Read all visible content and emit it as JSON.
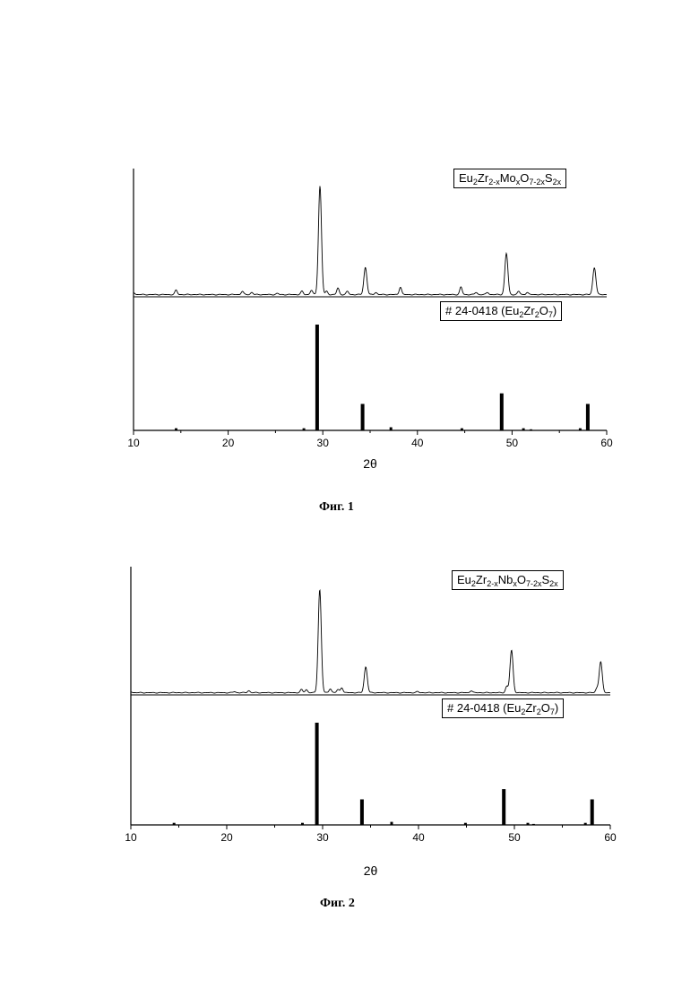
{
  "chart_data": [
    {
      "type": "line",
      "figure_caption": "Фиг. 1",
      "xlabel": "2θ",
      "xlim": [
        10,
        60
      ],
      "xticks": [
        "10",
        "20",
        "30",
        "40",
        "50",
        "60"
      ],
      "panels": [
        {
          "type": "line",
          "legend": {
            "base": "Eu",
            "parts": [
              [
                "Eu",
                ""
              ],
              [
                "2",
                "sub"
              ],
              [
                "Zr",
                ""
              ],
              [
                "2-x",
                "sub"
              ],
              [
                "Mo",
                ""
              ],
              [
                "x",
                "sub"
              ],
              [
                "O",
                ""
              ],
              [
                "7-2x",
                "sub"
              ],
              [
                "S",
                ""
              ],
              [
                "2x",
                "sub"
              ]
            ]
          },
          "series": [
            {
              "x": [
                10,
                14.5,
                21.5,
                22.5,
                25.2,
                27.8,
                28.8,
                29.7,
                30.4,
                31.6,
                32.6,
                34.5,
                35.6,
                38.2,
                44.6,
                46.2,
                47.4,
                49.4,
                50.7,
                51.6,
                58.7
              ],
              "y": [
                2,
                4,
                3,
                2,
                1,
                3,
                4,
                100,
                3,
                6,
                3,
                25,
                2,
                7,
                7,
                2,
                2,
                38,
                3,
                2,
                25
              ]
            }
          ]
        },
        {
          "type": "bar",
          "legend": {
            "parts": [
              [
                "# 24-0418 (Eu",
                ""
              ],
              [
                "2",
                "sub"
              ],
              [
                "Zr",
                ""
              ],
              [
                "2",
                "sub"
              ],
              [
                "O",
                ""
              ],
              [
                "7",
                "sub"
              ],
              [
                ")",
                ""
              ]
            ]
          },
          "series": [
            {
              "x": [
                14.5,
                28.0,
                29.4,
                34.2,
                37.2,
                44.7,
                48.9,
                51.2,
                52.0,
                57.2,
                58.0
              ],
              "y": [
                2,
                2,
                100,
                25,
                3,
                2,
                35,
                2,
                1,
                2,
                25
              ]
            }
          ]
        }
      ]
    },
    {
      "type": "line",
      "figure_caption": "Фиг. 2",
      "xlabel": "2θ",
      "xlim": [
        10,
        60
      ],
      "xticks": [
        "10",
        "20",
        "30",
        "40",
        "50",
        "60"
      ],
      "panels": [
        {
          "type": "line",
          "legend": {
            "parts": [
              [
                "Eu",
                ""
              ],
              [
                "2",
                "sub"
              ],
              [
                "Zr",
                ""
              ],
              [
                "2-x",
                "sub"
              ],
              [
                "Nb",
                ""
              ],
              [
                "x",
                "sub"
              ],
              [
                "O",
                ""
              ],
              [
                "7-2x",
                "sub"
              ],
              [
                "S",
                ""
              ],
              [
                "2x",
                "sub"
              ]
            ]
          },
          "series": [
            {
              "x": [
                10,
                20.8,
                22.3,
                27.8,
                28.3,
                29.7,
                30.8,
                31.6,
                32.0,
                34.5,
                39.9,
                45.5,
                49.2,
                49.7,
                58.6,
                59.0
              ],
              "y": [
                1,
                1,
                2,
                3,
                3,
                100,
                4,
                3,
                5,
                25,
                1,
                2,
                6,
                41,
                4,
                30
              ]
            }
          ]
        },
        {
          "type": "bar",
          "legend": {
            "parts": [
              [
                "# 24-0418 (Eu",
                ""
              ],
              [
                "2",
                "sub"
              ],
              [
                "Zr",
                ""
              ],
              [
                "2",
                "sub"
              ],
              [
                "O",
                ""
              ],
              [
                "7",
                "sub"
              ],
              [
                ")",
                ""
              ]
            ]
          },
          "series": [
            {
              "x": [
                14.5,
                27.9,
                29.4,
                34.1,
                37.2,
                44.9,
                48.9,
                51.4,
                52.0,
                57.4,
                58.1
              ],
              "y": [
                2,
                2,
                100,
                25,
                3,
                2,
                35,
                2,
                1,
                2,
                25
              ]
            }
          ]
        }
      ]
    }
  ]
}
